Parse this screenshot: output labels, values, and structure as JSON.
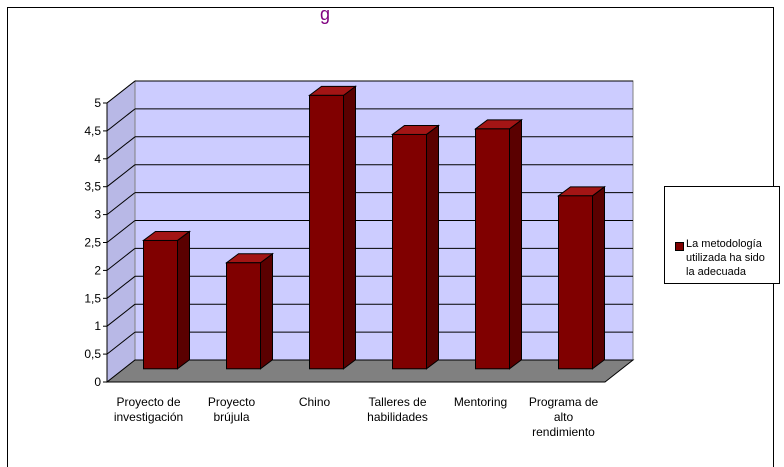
{
  "title_fragment": "g",
  "chart_data": {
    "type": "bar",
    "three_d": true,
    "categories": [
      [
        "Proyecto de",
        "investigación"
      ],
      [
        "Proyecto",
        "brújula"
      ],
      [
        "Chino"
      ],
      [
        "Talleres de",
        "habilidades"
      ],
      [
        "Mentoring"
      ],
      [
        "Programa de",
        "alto",
        "rendimiento"
      ]
    ],
    "series": [
      {
        "name": "La metodología utilizada ha sido la adecuada",
        "values": [
          2.3,
          1.9,
          4.9,
          4.2,
          4.3,
          3.1
        ]
      }
    ],
    "ylim": [
      0,
      5
    ],
    "yticks": [
      "0",
      "0,5",
      "1",
      "1,5",
      "2",
      "2,5",
      "3",
      "3,5",
      "4",
      "4,5",
      "5"
    ],
    "grid": true,
    "legend_position": "right",
    "colors": {
      "bar": "#800000",
      "bar_top": "#a31515",
      "bar_side": "#5a0000",
      "plot_wall": "#ccccff",
      "floor": "#808080"
    }
  },
  "legend": {
    "lines": [
      "La metodología",
      "utilizada ha sido",
      "la adecuada"
    ]
  }
}
